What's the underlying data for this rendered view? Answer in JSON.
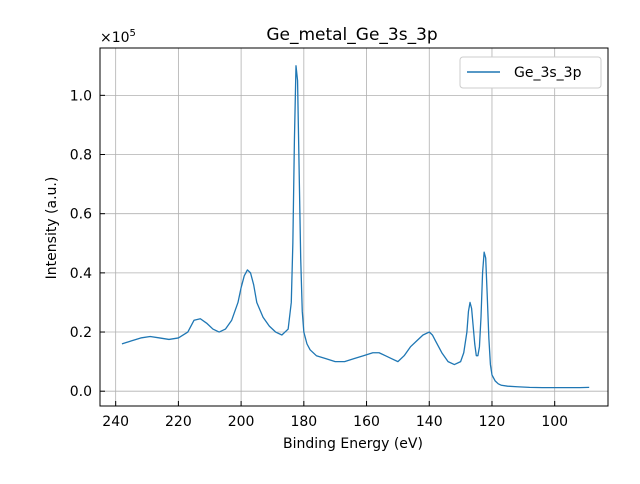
{
  "chart_data": {
    "type": "line",
    "title": "Ge_metal_Ge_3s_3p",
    "xlabel": "Binding Energy (eV)",
    "ylabel": "Intensity (a.u.)",
    "y_multiplier_label": "×10",
    "y_multiplier_exponent": "5",
    "x_axis_reversed": true,
    "xlim": [
      245,
      83
    ],
    "ylim": [
      -0.05,
      1.16
    ],
    "x_ticks": [
      240,
      220,
      200,
      180,
      160,
      140,
      120,
      100
    ],
    "x_tick_labels": [
      "240",
      "220",
      "200",
      "180",
      "160",
      "140",
      "120",
      "100"
    ],
    "y_ticks": [
      0.0,
      0.2,
      0.4,
      0.6,
      0.8,
      1.0
    ],
    "y_tick_labels": [
      "0.0",
      "0.2",
      "0.4",
      "0.6",
      "0.8",
      "1.0"
    ],
    "grid": true,
    "legend_position": "top-right",
    "series": [
      {
        "name": "Ge_3s_3p",
        "color": "#1f77b4",
        "x": [
          238,
          235,
          232,
          229,
          226,
          223,
          220,
          217,
          215,
          213,
          211,
          209,
          207,
          205,
          203,
          201,
          200,
          199,
          198,
          197,
          196,
          195,
          193,
          191,
          189,
          187,
          185,
          184,
          183.5,
          183,
          182.5,
          182,
          181.5,
          181,
          180.5,
          180,
          179,
          178,
          176,
          173,
          170,
          167,
          164,
          161,
          158,
          156,
          154,
          152,
          150,
          148,
          146,
          144,
          142,
          140,
          139,
          138,
          136,
          134,
          132,
          130,
          129,
          128,
          127.5,
          127,
          126.5,
          126,
          125.5,
          125,
          124.5,
          124,
          123.5,
          123,
          122.5,
          122,
          121.5,
          121,
          120.5,
          120,
          119,
          118,
          117,
          115,
          112,
          108,
          104,
          100,
          96,
          92,
          89
        ],
        "y": [
          0.16,
          0.17,
          0.18,
          0.185,
          0.18,
          0.175,
          0.18,
          0.2,
          0.24,
          0.245,
          0.23,
          0.21,
          0.2,
          0.21,
          0.24,
          0.3,
          0.35,
          0.39,
          0.41,
          0.4,
          0.36,
          0.3,
          0.25,
          0.22,
          0.2,
          0.19,
          0.21,
          0.3,
          0.5,
          0.85,
          1.1,
          1.05,
          0.75,
          0.45,
          0.27,
          0.2,
          0.16,
          0.14,
          0.12,
          0.11,
          0.1,
          0.1,
          0.11,
          0.12,
          0.13,
          0.13,
          0.12,
          0.11,
          0.1,
          0.12,
          0.15,
          0.17,
          0.19,
          0.2,
          0.19,
          0.17,
          0.13,
          0.1,
          0.09,
          0.1,
          0.13,
          0.2,
          0.27,
          0.3,
          0.28,
          0.22,
          0.16,
          0.12,
          0.12,
          0.15,
          0.25,
          0.4,
          0.47,
          0.45,
          0.32,
          0.18,
          0.09,
          0.055,
          0.035,
          0.025,
          0.02,
          0.017,
          0.015,
          0.013,
          0.012,
          0.012,
          0.012,
          0.012,
          0.013
        ]
      }
    ]
  }
}
